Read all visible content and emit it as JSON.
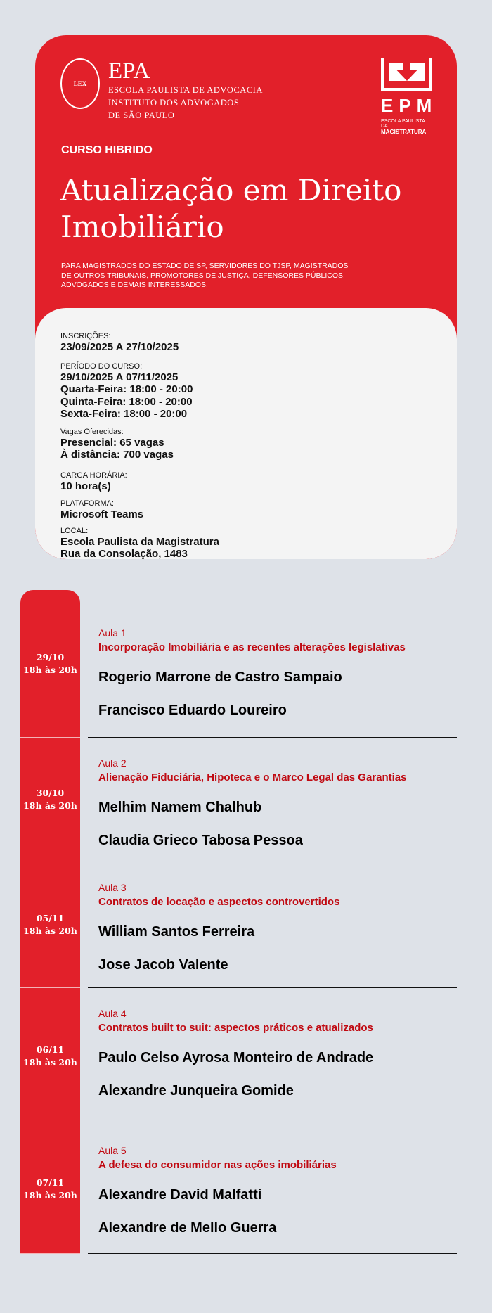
{
  "header": {
    "epa_logo": {
      "seal_text": "LEX",
      "name": "EPA",
      "lines": [
        "ESCOLA PAULISTA DE ADVOCACIA",
        "INSTITUTO DOS ADVOGADOS",
        "DE SÃO PAULO"
      ]
    },
    "epm_logo": {
      "name": "EPM",
      "line1": "ESCOLA PAULISTA DA",
      "line2": "MAGISTRATURA"
    },
    "kicker": "CURSO HIBRIDO",
    "title": "Atualização em Direito Imobiliário",
    "audience": "PARA MAGISTRADOS DO ESTADO DE SP, SERVIDORES DO TJSP, MAGISTRADOS DE OUTROS TRIBUNAIS, PROMOTORES DE JUSTIÇA, DEFENSORES PÚBLICOS, ADVOGADOS E DEMAIS INTERESSADOS."
  },
  "info": {
    "inscricoes_label": "INSCRIÇÕES:",
    "inscricoes": "23/09/2025 A 27/10/2025",
    "periodo_label": "PERÍODO DO CURSO:",
    "periodo": [
      "29/10/2025 A 07/11/2025",
      "Quarta-Feira: 18:00 - 20:00",
      "Quinta-Feira: 18:00 - 20:00",
      "Sexta-Feira: 18:00 - 20:00"
    ],
    "vagas_label": "Vagas Oferecidas:",
    "vagas": [
      "Presencial: 65 vagas",
      "À distância: 700 vagas"
    ],
    "carga_label": "CARGA HORÁRIA:",
    "carga": "10 hora(s)",
    "plataforma_label": "PLATAFORMA:",
    "plataforma": "Microsoft Teams",
    "local_label": "LOCAL:",
    "local": [
      "Escola Paulista da Magistratura",
      "Rua da Consolação, 1483"
    ]
  },
  "colors": {
    "brand_red": "#e2202a",
    "topic_red": "#c00a12",
    "background": "#dee2e8"
  },
  "schedule": [
    {
      "date": "29/10",
      "time": "18h às 20h",
      "aula": "Aula 1",
      "topic": "Incorporação Imobiliária e as recentes alterações legislativas",
      "speakers": [
        "Rogerio Marrone de Castro Sampaio",
        "Francisco Eduardo Loureiro"
      ]
    },
    {
      "date": "30/10",
      "time": "18h às 20h",
      "aula": "Aula 2",
      "topic": "Alienação Fiduciária, Hipoteca e o Marco Legal das Garantias",
      "speakers": [
        "Melhim Namem Chalhub",
        "Claudia Grieco Tabosa Pessoa"
      ]
    },
    {
      "date": "05/11",
      "time": "18h às 20h",
      "aula": "Aula 3",
      "topic": "Contratos de locação e aspectos controvertidos",
      "speakers": [
        "William Santos Ferreira",
        "Jose Jacob Valente"
      ]
    },
    {
      "date": "06/11",
      "time": "18h às 20h",
      "aula": "Aula 4",
      "topic": "Contratos built to suit: aspectos práticos e atualizados",
      "speakers": [
        "Paulo Celso Ayrosa Monteiro de Andrade",
        "Alexandre Junqueira Gomide"
      ]
    },
    {
      "date": "07/11",
      "time": "18h às 20h",
      "aula": "Aula 5",
      "topic": "A defesa do consumidor nas ações imobiliárias",
      "speakers": [
        "Alexandre David Malfatti",
        "Alexandre de Mello Guerra"
      ]
    }
  ]
}
